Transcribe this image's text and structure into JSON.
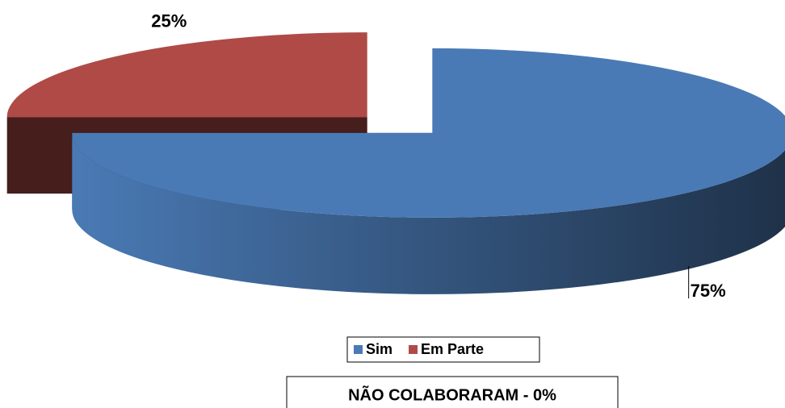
{
  "chart_data": {
    "type": "pie",
    "categories": [
      "Sim",
      "Em Parte"
    ],
    "series": [
      {
        "name": "Sim",
        "color": "#4a7ab5"
      },
      {
        "name": "Em Parte",
        "color": "#b04a47"
      }
    ],
    "values": [
      75,
      25
    ],
    "value_labels": [
      "75%",
      "25%"
    ],
    "annotation": "NÃO COLABORARAM - 0%",
    "legend": "bottom"
  }
}
